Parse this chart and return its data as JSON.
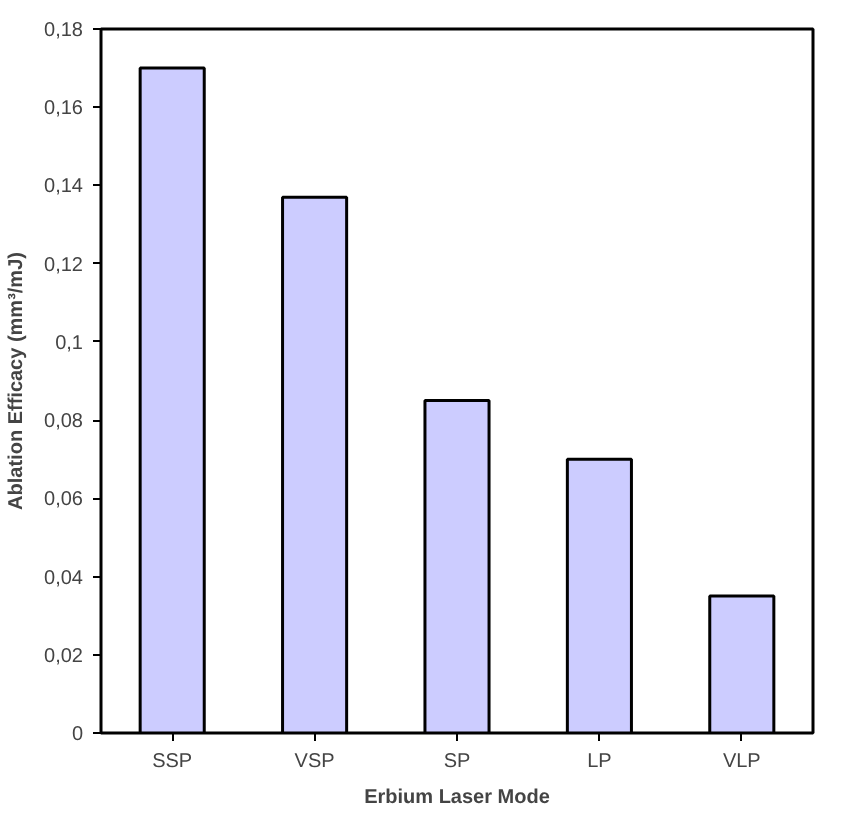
{
  "chart_data": {
    "type": "bar",
    "xlabel": "Erbium Laser Mode",
    "ylabel": "Ablation Efficacy (mm³/mJ)",
    "categories": [
      "SSP",
      "VSP",
      "SP",
      "LP",
      "VLP"
    ],
    "values": [
      0.17,
      0.137,
      0.085,
      0.07,
      0.035
    ],
    "color": "#ccccff",
    "ylim": [
      0,
      0.18
    ],
    "yticks": [
      0,
      {
        "value": 0.02,
        "label": "0,02"
      },
      {
        "value": 0.04,
        "label": "0,04"
      },
      {
        "value": 0.06,
        "label": "0,06"
      },
      {
        "value": 0.08,
        "label": "0,08"
      },
      {
        "value": 0.1,
        "label": "0,1"
      },
      {
        "value": 0.12,
        "label": "0,12"
      },
      {
        "value": 0.14,
        "label": "0,14"
      },
      {
        "value": 0.16,
        "label": "0,16"
      },
      {
        "value": 0.18,
        "label": "0,18"
      }
    ],
    "grid": false
  }
}
